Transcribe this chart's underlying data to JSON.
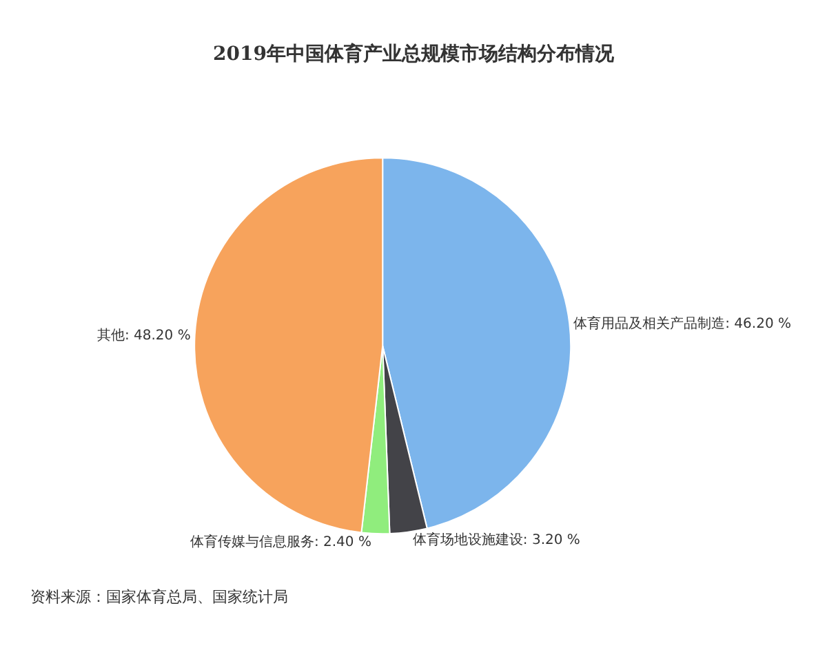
{
  "chart_data": {
    "type": "pie",
    "title": "2019年中国体育产业总规模市场结构分布情况",
    "categories": [
      "体育用品及相关产品制造",
      "体育场地设施建设",
      "体育传媒与信息服务",
      "其他"
    ],
    "values": [
      46.2,
      3.2,
      2.4,
      48.2
    ],
    "value_labels": [
      "46.20 %",
      "3.20 %",
      "2.40 %",
      "48.20 %"
    ],
    "colors": [
      "#7cb5ec",
      "#434348",
      "#90ed7d",
      "#f7a35c"
    ],
    "annotations": [
      "资料来源：国家体育总局、国家统计局"
    ],
    "legend": false
  }
}
